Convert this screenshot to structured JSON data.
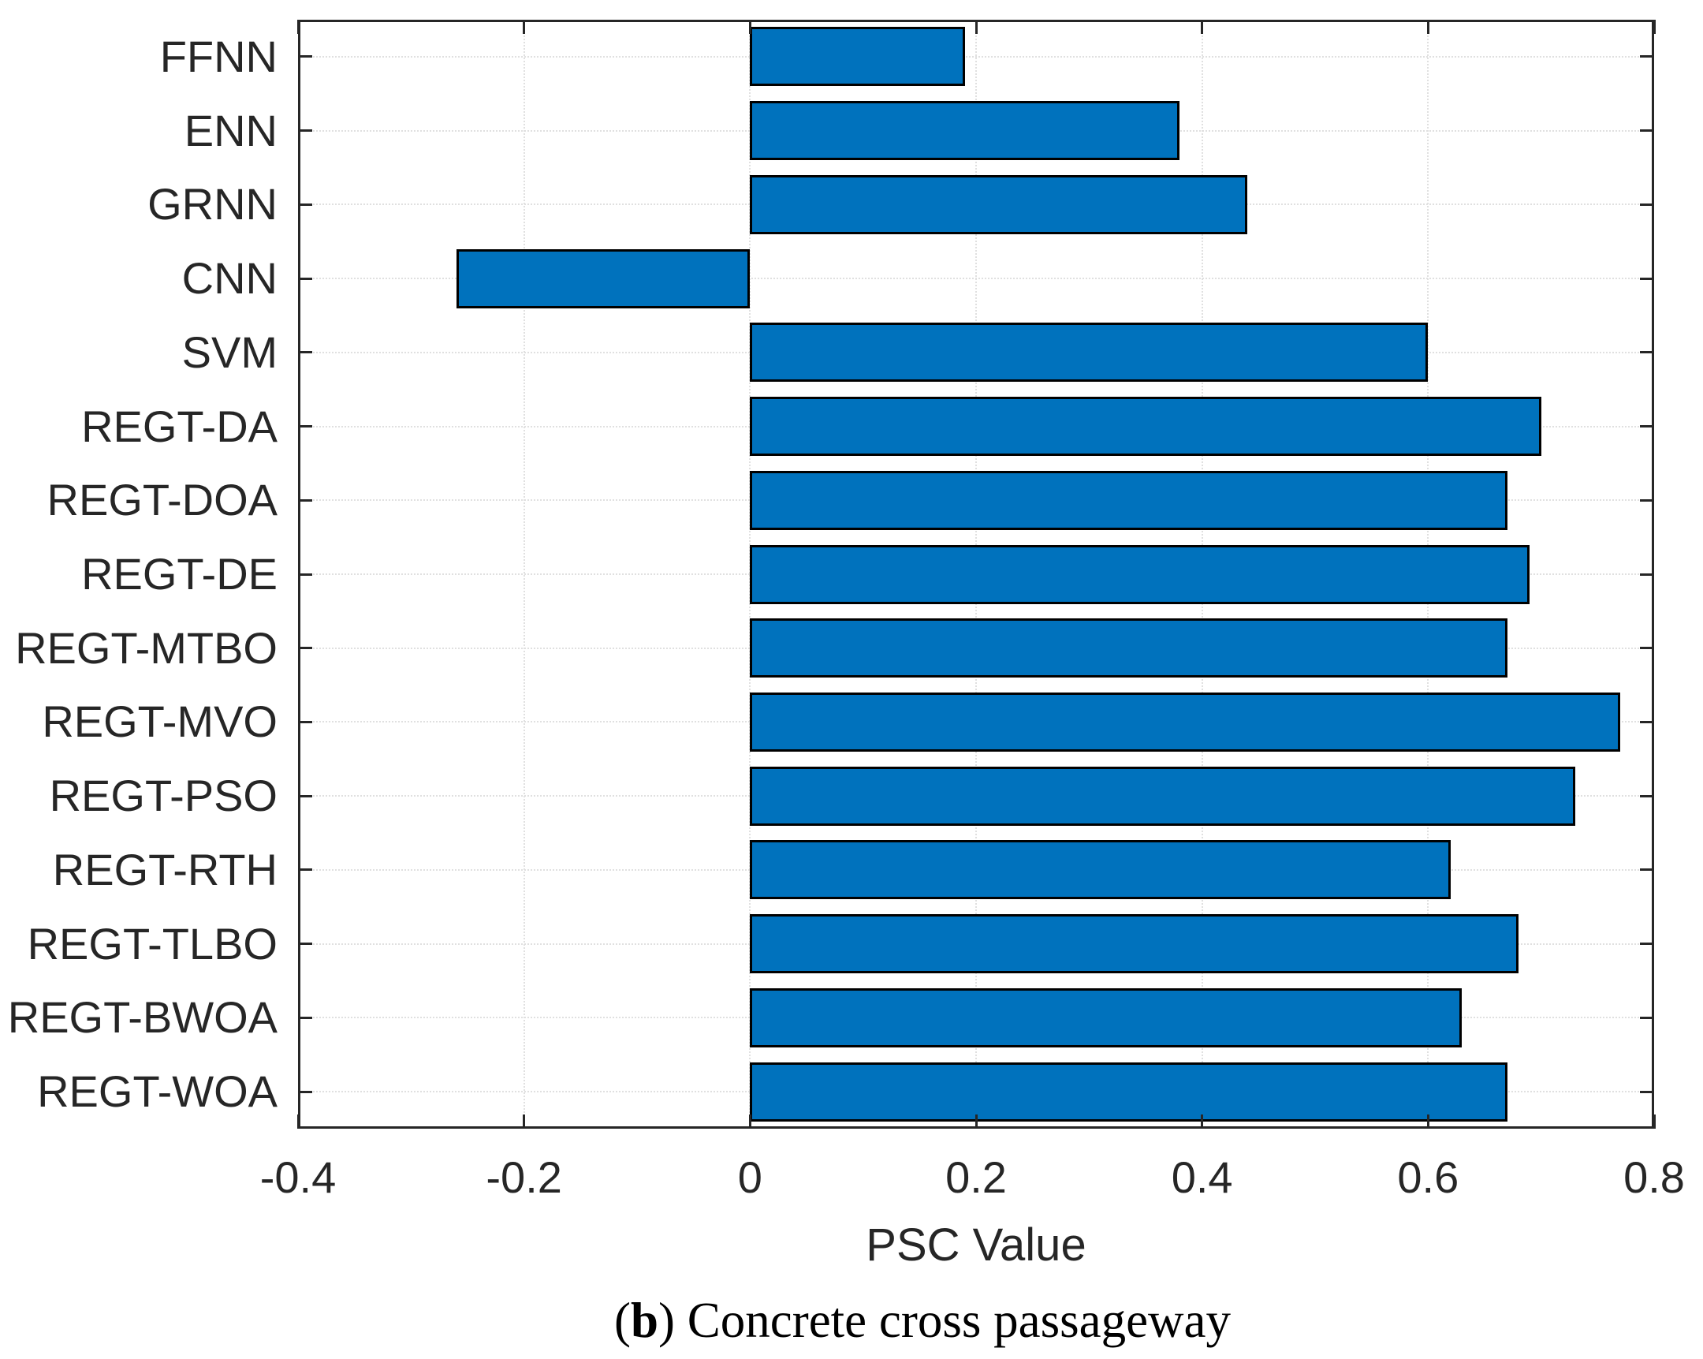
{
  "chart_data": {
    "type": "bar",
    "orientation": "horizontal",
    "categories": [
      "FFNN",
      "ENN",
      "GRNN",
      "CNN",
      "SVM",
      "REGT-DA",
      "REGT-DOA",
      "REGT-DE",
      "REGT-MTBO",
      "REGT-MVO",
      "REGT-PSO",
      "REGT-RTH",
      "REGT-TLBO",
      "REGT-BWOA",
      "REGT-WOA"
    ],
    "values": [
      0.19,
      0.38,
      0.44,
      -0.26,
      0.6,
      0.7,
      0.67,
      0.69,
      0.67,
      0.77,
      0.73,
      0.62,
      0.68,
      0.63,
      0.67
    ],
    "xlabel": "PSC Value",
    "ylabel": "",
    "xlim": [
      -0.4,
      0.8
    ],
    "xticks": [
      -0.4,
      -0.2,
      0,
      0.2,
      0.4,
      0.6,
      0.8
    ],
    "xtick_labels": [
      "-0.4",
      "-0.2",
      "0",
      "0.2",
      "0.4",
      "0.6",
      "0.8"
    ],
    "grid": true,
    "legend": null,
    "bar_color": "#0072BD",
    "bar_edge_color": "#000000",
    "axis_color": "#262626",
    "grid_color": "#e0e0e0",
    "text_color": "#262626"
  },
  "caption": {
    "open": "(",
    "letter": "b",
    "rest": ") Concrete cross passageway"
  }
}
